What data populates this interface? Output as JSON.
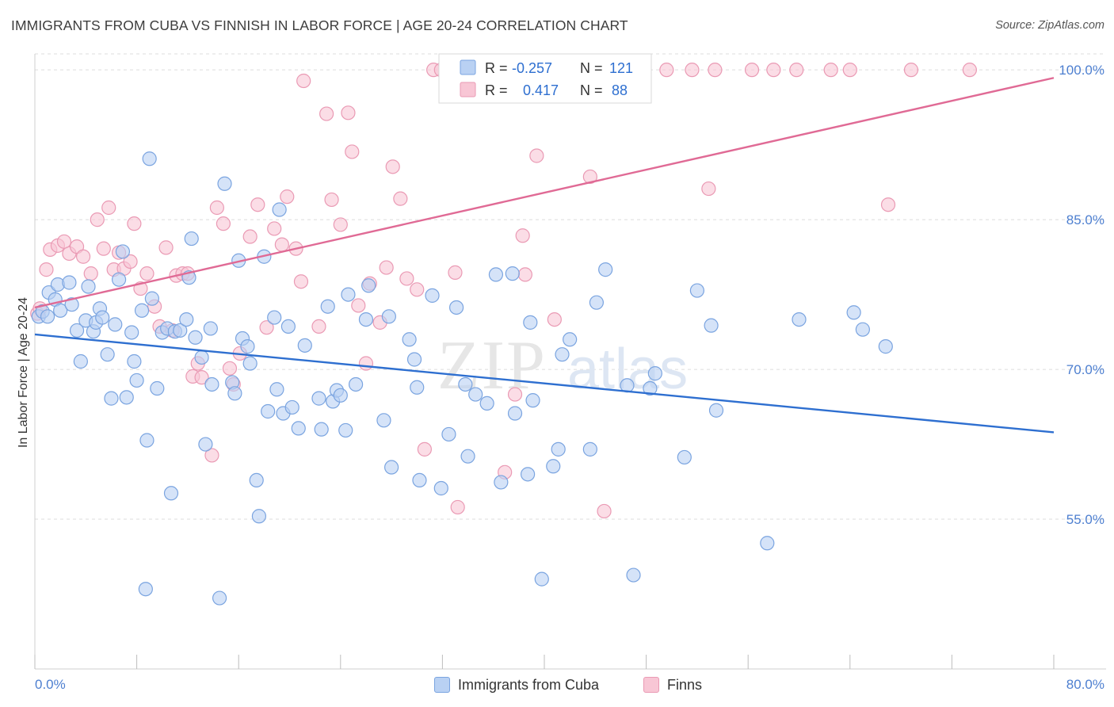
{
  "title": "IMMIGRANTS FROM CUBA VS FINNISH IN LABOR FORCE | AGE 20-24 CORRELATION CHART",
  "source": "Source: ZipAtlas.com",
  "watermark": {
    "zip": "ZIP",
    "atlas": "atlas"
  },
  "colors": {
    "blue_fill": "#b9d1f3",
    "blue_stroke": "#7aa4e0",
    "blue_line": "#2e6fd0",
    "pink_fill": "#f8c6d5",
    "pink_stroke": "#ea9ab4",
    "pink_line": "#e06a95",
    "tick_text": "#4d7fd0",
    "grid": "#dcdcdc"
  },
  "legend": {
    "r_label": "R =",
    "n_label": "N =",
    "blue": {
      "r": "-0.257",
      "n": "121"
    },
    "pink": {
      "r": "0.417",
      "n": "88"
    }
  },
  "chart_data": {
    "type": "scatter",
    "title": "IMMIGRANTS FROM CUBA VS FINNISH IN LABOR FORCE | AGE 20-24 CORRELATION CHART",
    "xlabel": "",
    "ylabel": "In Labor Force | Age 20-24",
    "xlim": [
      0,
      80
    ],
    "ylim": [
      40,
      101.6
    ],
    "x_tick_labels": [
      "0.0%",
      "80.0%"
    ],
    "y_ticks": [
      55,
      70,
      85,
      100
    ],
    "y_tick_labels": [
      "55.0%",
      "70.0%",
      "85.0%",
      "100.0%"
    ],
    "grid": true,
    "legend_position": "top-center",
    "series": [
      {
        "name": "Immigrants from Cuba",
        "color": "#b9d1f3",
        "trend": {
          "x": [
            0,
            80
          ],
          "y": [
            73.5,
            63.7
          ]
        },
        "points": [
          [
            0.3,
            75.3
          ],
          [
            0.6,
            75.8
          ],
          [
            1.0,
            75.3
          ],
          [
            1.1,
            77.7
          ],
          [
            1.6,
            77.0
          ],
          [
            1.8,
            78.5
          ],
          [
            2.0,
            75.9
          ],
          [
            2.7,
            78.7
          ],
          [
            2.9,
            76.5
          ],
          [
            3.3,
            73.9
          ],
          [
            3.6,
            70.8
          ],
          [
            4.0,
            74.9
          ],
          [
            4.2,
            78.3
          ],
          [
            4.6,
            73.8
          ],
          [
            4.8,
            74.7
          ],
          [
            5.1,
            76.1
          ],
          [
            5.3,
            75.2
          ],
          [
            5.7,
            71.5
          ],
          [
            6.0,
            67.1
          ],
          [
            6.3,
            74.5
          ],
          [
            6.6,
            79.0
          ],
          [
            6.9,
            81.8
          ],
          [
            7.2,
            67.2
          ],
          [
            7.6,
            73.7
          ],
          [
            7.8,
            70.8
          ],
          [
            8.0,
            68.9
          ],
          [
            8.4,
            75.9
          ],
          [
            8.8,
            62.9
          ],
          [
            9.0,
            91.1
          ],
          [
            9.2,
            77.1
          ],
          [
            9.6,
            68.1
          ],
          [
            10.0,
            73.7
          ],
          [
            10.4,
            74.1
          ],
          [
            10.7,
            57.6
          ],
          [
            11.0,
            73.8
          ],
          [
            11.4,
            73.9
          ],
          [
            11.9,
            75.0
          ],
          [
            12.1,
            79.2
          ],
          [
            12.3,
            83.1
          ],
          [
            12.6,
            73.2
          ],
          [
            13.1,
            71.2
          ],
          [
            13.4,
            62.5
          ],
          [
            13.8,
            74.1
          ],
          [
            13.9,
            68.5
          ],
          [
            14.9,
            88.6
          ],
          [
            15.5,
            68.7
          ],
          [
            15.7,
            67.6
          ],
          [
            16.0,
            80.9
          ],
          [
            16.3,
            73.1
          ],
          [
            16.7,
            72.3
          ],
          [
            16.9,
            70.6
          ],
          [
            17.4,
            58.9
          ],
          [
            17.6,
            55.3
          ],
          [
            18.0,
            81.3
          ],
          [
            18.3,
            65.8
          ],
          [
            18.8,
            75.2
          ],
          [
            19.0,
            68.0
          ],
          [
            19.2,
            86.0
          ],
          [
            19.5,
            65.6
          ],
          [
            19.9,
            74.3
          ],
          [
            20.2,
            66.2
          ],
          [
            20.7,
            64.1
          ],
          [
            21.2,
            72.4
          ],
          [
            22.3,
            67.1
          ],
          [
            22.5,
            64.0
          ],
          [
            23.0,
            76.3
          ],
          [
            23.4,
            66.8
          ],
          [
            23.7,
            67.9
          ],
          [
            24.0,
            67.4
          ],
          [
            24.4,
            63.9
          ],
          [
            24.6,
            77.5
          ],
          [
            25.2,
            68.5
          ],
          [
            26.0,
            75.0
          ],
          [
            26.2,
            78.4
          ],
          [
            27.4,
            64.9
          ],
          [
            27.8,
            75.3
          ],
          [
            28.0,
            60.2
          ],
          [
            29.4,
            73.0
          ],
          [
            29.8,
            71.0
          ],
          [
            30.0,
            68.2
          ],
          [
            30.2,
            58.9
          ],
          [
            31.2,
            77.4
          ],
          [
            31.9,
            58.1
          ],
          [
            32.5,
            63.5
          ],
          [
            33.1,
            76.2
          ],
          [
            33.8,
            68.5
          ],
          [
            34.0,
            61.3
          ],
          [
            34.6,
            67.5
          ],
          [
            35.5,
            66.6
          ],
          [
            36.2,
            79.5
          ],
          [
            36.6,
            58.7
          ],
          [
            37.5,
            79.6
          ],
          [
            37.7,
            65.6
          ],
          [
            38.7,
            59.5
          ],
          [
            38.9,
            74.7
          ],
          [
            39.1,
            66.9
          ],
          [
            39.8,
            49.0
          ],
          [
            40.7,
            60.3
          ],
          [
            41.1,
            62.0
          ],
          [
            41.4,
            71.5
          ],
          [
            42.0,
            73.0
          ],
          [
            43.6,
            62.0
          ],
          [
            44.1,
            76.7
          ],
          [
            44.8,
            80.0
          ],
          [
            46.5,
            68.4
          ],
          [
            47.0,
            49.4
          ],
          [
            48.3,
            68.1
          ],
          [
            48.7,
            69.6
          ],
          [
            51.0,
            61.2
          ],
          [
            52.0,
            77.9
          ],
          [
            53.1,
            74.4
          ],
          [
            53.5,
            65.9
          ],
          [
            57.5,
            52.6
          ],
          [
            60.0,
            75.0
          ],
          [
            64.3,
            75.7
          ],
          [
            65.0,
            74.0
          ],
          [
            66.8,
            72.3
          ],
          [
            8.7,
            48.0
          ],
          [
            14.5,
            47.1
          ]
        ]
      },
      {
        "name": "Finns",
        "color": "#f8c6d5",
        "trend": {
          "x": [
            0,
            80
          ],
          "y": [
            76.2,
            99.2
          ]
        },
        "points": [
          [
            0.2,
            75.6
          ],
          [
            0.4,
            76.1
          ],
          [
            0.9,
            80.0
          ],
          [
            1.2,
            82.0
          ],
          [
            1.8,
            82.4
          ],
          [
            2.3,
            82.8
          ],
          [
            2.7,
            81.6
          ],
          [
            3.3,
            82.3
          ],
          [
            3.8,
            81.3
          ],
          [
            4.4,
            79.6
          ],
          [
            4.9,
            85.0
          ],
          [
            5.4,
            82.1
          ],
          [
            5.8,
            86.2
          ],
          [
            6.2,
            80.0
          ],
          [
            6.6,
            81.7
          ],
          [
            7.0,
            80.1
          ],
          [
            7.5,
            80.8
          ],
          [
            7.8,
            84.6
          ],
          [
            8.3,
            78.1
          ],
          [
            8.8,
            79.6
          ],
          [
            9.4,
            76.3
          ],
          [
            9.8,
            74.3
          ],
          [
            10.3,
            82.2
          ],
          [
            10.8,
            73.9
          ],
          [
            11.1,
            79.4
          ],
          [
            11.6,
            79.6
          ],
          [
            12.0,
            79.6
          ],
          [
            12.4,
            69.3
          ],
          [
            12.8,
            70.6
          ],
          [
            13.1,
            69.2
          ],
          [
            13.9,
            61.4
          ],
          [
            14.3,
            86.2
          ],
          [
            14.8,
            84.6
          ],
          [
            15.3,
            70.1
          ],
          [
            15.6,
            68.5
          ],
          [
            16.1,
            71.6
          ],
          [
            16.9,
            83.3
          ],
          [
            17.5,
            86.5
          ],
          [
            18.2,
            74.2
          ],
          [
            18.8,
            84.1
          ],
          [
            19.4,
            82.5
          ],
          [
            19.8,
            87.3
          ],
          [
            20.5,
            82.1
          ],
          [
            20.9,
            78.8
          ],
          [
            21.1,
            98.9
          ],
          [
            22.3,
            74.3
          ],
          [
            22.9,
            95.6
          ],
          [
            23.3,
            87.0
          ],
          [
            24.0,
            84.5
          ],
          [
            24.6,
            95.7
          ],
          [
            24.9,
            91.8
          ],
          [
            25.4,
            76.4
          ],
          [
            26.0,
            70.6
          ],
          [
            26.3,
            78.6
          ],
          [
            27.1,
            74.7
          ],
          [
            27.6,
            80.2
          ],
          [
            28.1,
            90.3
          ],
          [
            28.7,
            87.1
          ],
          [
            29.2,
            79.1
          ],
          [
            30.0,
            78.0
          ],
          [
            30.6,
            62.0
          ],
          [
            31.3,
            100.0
          ],
          [
            31.9,
            100.0
          ],
          [
            33.0,
            79.7
          ],
          [
            33.2,
            56.2
          ],
          [
            35.3,
            100.0
          ],
          [
            36.9,
            59.7
          ],
          [
            37.7,
            67.5
          ],
          [
            38.5,
            79.5
          ],
          [
            38.3,
            83.4
          ],
          [
            39.4,
            91.4
          ],
          [
            40.8,
            75.0
          ],
          [
            41.2,
            100.0
          ],
          [
            43.6,
            89.3
          ],
          [
            44.7,
            55.8
          ],
          [
            47.0,
            100.0
          ],
          [
            49.6,
            100.0
          ],
          [
            51.6,
            100.0
          ],
          [
            53.4,
            100.0
          ],
          [
            52.9,
            88.1
          ],
          [
            56.3,
            100.0
          ],
          [
            58.0,
            100.0
          ],
          [
            59.8,
            100.0
          ],
          [
            62.5,
            100.0
          ],
          [
            64.0,
            100.0
          ],
          [
            67.0,
            86.5
          ],
          [
            68.8,
            100.0
          ],
          [
            73.4,
            100.0
          ]
        ]
      }
    ]
  }
}
